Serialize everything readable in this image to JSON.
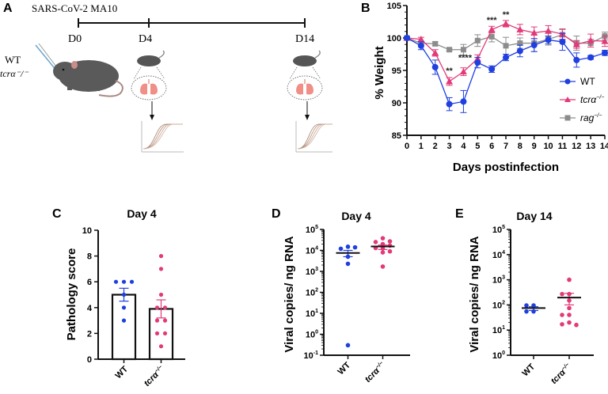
{
  "panel_a": {
    "letter": "A",
    "title": "SARS-CoV-2 MA10",
    "timeline_labels": [
      "D0",
      "D4",
      "D14"
    ],
    "group_label_1": "WT",
    "group_label_2": "tcrα⁻/⁻"
  },
  "colors": {
    "wt": "#1f3fe0",
    "tcra": "#e23a78",
    "rag": "#8c8c8c",
    "axis": "#111111"
  },
  "chart_data": [
    {
      "panel": "B",
      "type": "line",
      "title": "",
      "xlabel": "Days postinfection",
      "ylabel": "% Weight",
      "x": [
        0,
        1,
        2,
        3,
        4,
        5,
        6,
        7,
        8,
        9,
        10,
        11,
        12,
        13,
        14
      ],
      "xlim": [
        0,
        14
      ],
      "ylim": [
        85,
        105
      ],
      "yticks": [
        85,
        90,
        95,
        100,
        105
      ],
      "xticks": [
        "0",
        "1",
        "2",
        "3",
        "4",
        "5",
        "6",
        "7",
        "8",
        "9",
        "10",
        "11",
        "12",
        "13",
        "14"
      ],
      "legend": "right",
      "series": [
        {
          "name": "WT",
          "marker": "circle",
          "color": "#1f3fe0",
          "values": [
            100,
            98.8,
            95.5,
            89.8,
            90.2,
            96.2,
            95.2,
            97.0,
            98.0,
            98.9,
            99.7,
            99.4,
            96.6,
            97.0,
            97.7
          ],
          "errors": [
            0.2,
            0.6,
            1.1,
            1.0,
            1.7,
            0.8,
            0.5,
            0.5,
            0.9,
            1.0,
            0.6,
            1.3,
            1.1,
            0.3,
            0.4
          ]
        },
        {
          "name": "tcrα⁻/⁻",
          "marker": "triangle",
          "color": "#e23a78",
          "values": [
            100,
            99.8,
            97.7,
            93.3,
            94.8,
            96.8,
            101.3,
            102.2,
            101.3,
            100.8,
            101.1,
            100.6,
            99.0,
            99.6,
            99.5
          ],
          "errors": [
            0.1,
            0.3,
            0.5,
            0.6,
            0.6,
            0.6,
            0.5,
            0.5,
            0.8,
            0.9,
            0.8,
            0.8,
            0.6,
            1.0,
            0.8
          ]
        },
        {
          "name": "rag⁻/⁻",
          "marker": "square",
          "color": "#8c8c8c",
          "values": [
            100,
            99.2,
            99.1,
            98.2,
            98.2,
            99.6,
            100.2,
            98.8,
            99.2,
            99.2,
            99.8,
            100.5,
            99.2,
            99.2,
            100.3
          ],
          "errors": [
            0.1,
            0.3,
            0.3,
            0.2,
            0.8,
            0.9,
            0.8,
            1.3,
            0.8,
            1.3,
            0.9,
            0.8,
            1.1,
            0.6,
            0.6
          ]
        }
      ],
      "annotations": [
        {
          "x": 3,
          "text": "**"
        },
        {
          "x": 4,
          "text": "****"
        },
        {
          "x": 6,
          "text": "***"
        },
        {
          "x": 7,
          "text": "**"
        }
      ]
    },
    {
      "panel": "C",
      "type": "bar",
      "title": "Day 4",
      "ylabel": "Pathology score",
      "categories": [
        "WT",
        "tcrα⁻/⁻"
      ],
      "values": [
        5.0,
        3.9
      ],
      "sem": [
        0.5,
        0.7
      ],
      "points": [
        [
          6,
          6,
          6,
          5,
          4,
          3
        ],
        [
          8,
          7,
          5,
          4,
          4,
          3,
          3,
          2,
          2,
          1
        ]
      ],
      "ylim": [
        0,
        10
      ],
      "yticks": [
        0,
        2,
        4,
        6,
        8,
        10
      ]
    },
    {
      "panel": "D",
      "type": "scatter",
      "title": "Day 4",
      "ylabel": "Viral copies/ ng RNA",
      "yscale": "log",
      "categories": [
        "WT",
        "tcrα⁻/⁻"
      ],
      "means": [
        7500,
        15500
      ],
      "sem_range": [
        [
          5000,
          10000
        ],
        [
          11000,
          18000
        ]
      ],
      "points": [
        [
          15000,
          12000,
          14000,
          5000,
          2300,
          0.3
        ],
        [
          38000,
          25000,
          27000,
          20000,
          17000,
          13000,
          12500,
          9000,
          8000,
          1700
        ]
      ],
      "ylim_exp": [
        -1,
        5
      ],
      "yticks": [
        "10-1",
        "100",
        "101",
        "102",
        "103",
        "104",
        "105"
      ]
    },
    {
      "panel": "E",
      "type": "scatter",
      "title": "Day 14",
      "ylabel": "Viral copies/ ng RNA",
      "yscale": "log",
      "categories": [
        "WT",
        "tcrα⁻/⁻"
      ],
      "means": [
        75,
        195
      ],
      "sem_range": [
        [
          60,
          85
        ],
        [
          100,
          290
        ]
      ],
      "points": [
        [
          95,
          95,
          55,
          55
        ],
        [
          1000,
          270,
          270,
          150,
          75,
          40,
          40,
          20,
          17,
          16
        ]
      ],
      "ylim_exp": [
        0,
        5
      ],
      "yticks": [
        "100",
        "101",
        "102",
        "103",
        "104",
        "105"
      ]
    }
  ],
  "labels": {
    "b_letter": "B",
    "c_letter": "C",
    "d_letter": "D",
    "e_letter": "E",
    "b_ylabel": "% Weight",
    "b_xlabel": "Days postinfection",
    "c_title": "Day 4",
    "c_ylabel": "Pathology score",
    "d_title": "Day 4",
    "d_ylabel": "Viral copies/ ng RNA",
    "e_title": "Day 14",
    "e_ylabel": "Viral copies/ ng RNA",
    "cat_wt": "WT",
    "cat_tcr": "tcrα",
    "cat_tcr_sup": "−/−",
    "legend_wt": "WT",
    "legend_tcr": "tcrα",
    "legend_rag": "rag",
    "legend_sup": "−/−"
  }
}
